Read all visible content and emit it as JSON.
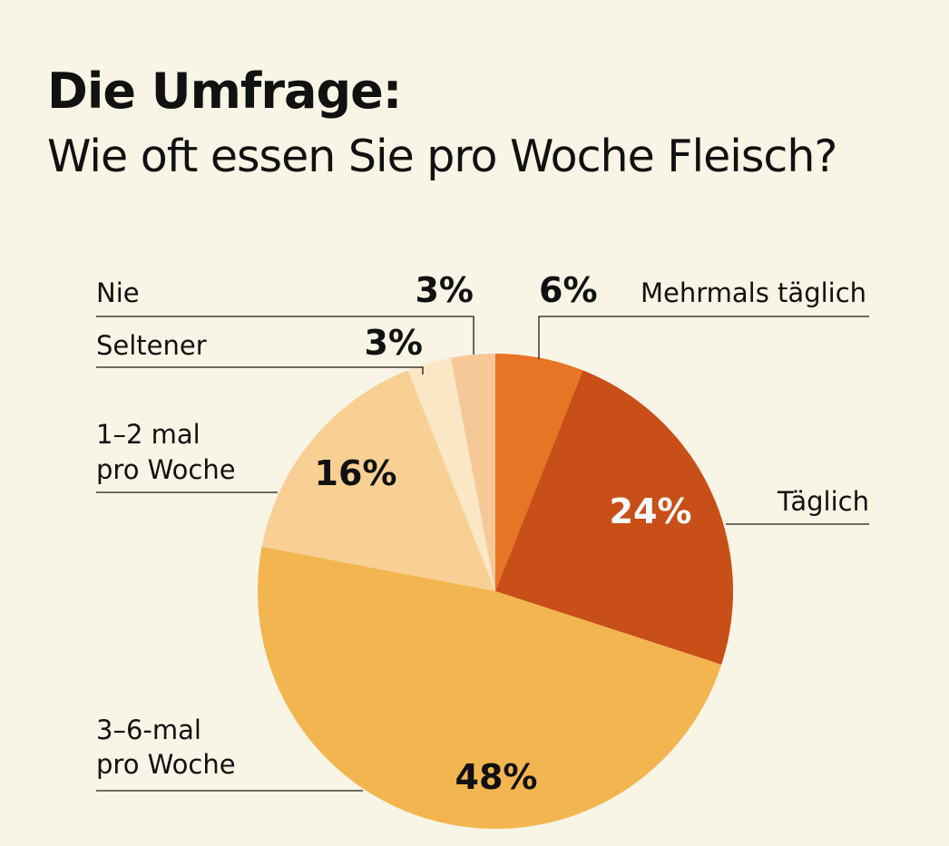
{
  "header": {
    "title": "Die Umfrage:",
    "subtitle": "Wie oft essen Sie pro Woche Fleisch?"
  },
  "chart_data": {
    "type": "pie",
    "start": "top",
    "direction": "clockwise",
    "slices": [
      {
        "label": [
          "Mehrmals täglich"
        ],
        "value": 6,
        "value_label": "6%",
        "color": "#e87425",
        "label_color": "#111111"
      },
      {
        "label": [
          "Täglich"
        ],
        "value": 24,
        "value_label": "24%",
        "color": "#c84f18",
        "label_color": "#ffffff"
      },
      {
        "label": [
          "3–6-mal",
          "pro Woche"
        ],
        "value": 48,
        "value_label": "48%",
        "color": "#f3b550",
        "label_color": "#111111"
      },
      {
        "label": [
          "1–2 mal",
          "pro Woche"
        ],
        "value": 16,
        "value_label": "16%",
        "color": "#f8d093",
        "label_color": "#111111"
      },
      {
        "label": [
          "Seltener"
        ],
        "value": 3,
        "value_label": "3%",
        "color": "#fbe6c6",
        "label_color": "#111111"
      },
      {
        "label": [
          "Nie"
        ],
        "value": 3,
        "value_label": "3%",
        "color": "#f6c898",
        "label_color": "#111111"
      }
    ]
  }
}
